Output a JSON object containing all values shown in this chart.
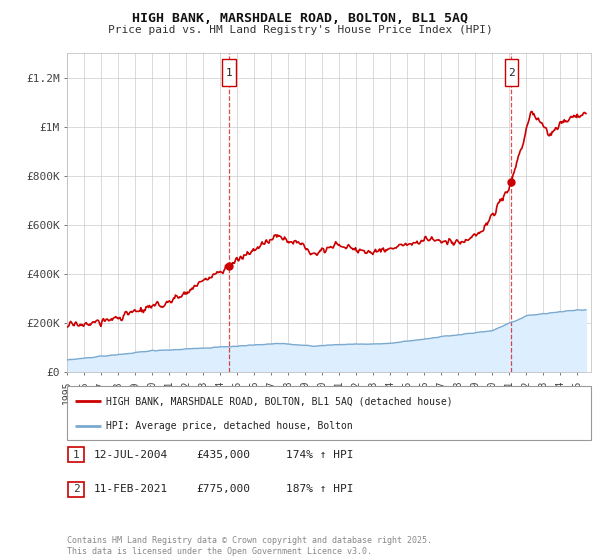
{
  "title": "HIGH BANK, MARSHDALE ROAD, BOLTON, BL1 5AQ",
  "subtitle": "Price paid vs. HM Land Registry's House Price Index (HPI)",
  "ylim": [
    0,
    1300000
  ],
  "xlim_start": 1995.0,
  "xlim_end": 2025.8,
  "yticks": [
    0,
    200000,
    400000,
    600000,
    800000,
    1000000,
    1200000
  ],
  "ytick_labels": [
    "£0",
    "£200K",
    "£400K",
    "£600K",
    "£800K",
    "£1M",
    "£1.2M"
  ],
  "xticks": [
    1995,
    1996,
    1997,
    1998,
    1999,
    2000,
    2001,
    2002,
    2003,
    2004,
    2005,
    2006,
    2007,
    2008,
    2009,
    2010,
    2011,
    2012,
    2013,
    2014,
    2015,
    2016,
    2017,
    2018,
    2019,
    2020,
    2021,
    2022,
    2023,
    2024,
    2025
  ],
  "red_line_color": "#cc0000",
  "blue_line_color": "#7aaad0",
  "blue_fill_color": "#ddeeff",
  "dashed_line_color": "#cc0000",
  "background_color": "#ffffff",
  "grid_color": "#cccccc",
  "point1_x": 2004.53,
  "point1_y": 435000,
  "point2_x": 2021.12,
  "point2_y": 775000,
  "legend_red_label": "HIGH BANK, MARSHDALE ROAD, BOLTON, BL1 5AQ (detached house)",
  "legend_blue_label": "HPI: Average price, detached house, Bolton",
  "annotation1_num": "1",
  "annotation1_date": "12-JUL-2004",
  "annotation1_price": "£435,000",
  "annotation1_hpi": "174% ↑ HPI",
  "annotation2_num": "2",
  "annotation2_date": "11-FEB-2021",
  "annotation2_price": "£775,000",
  "annotation2_hpi": "187% ↑ HPI",
  "footer": "Contains HM Land Registry data © Crown copyright and database right 2025.\nThis data is licensed under the Open Government Licence v3.0."
}
